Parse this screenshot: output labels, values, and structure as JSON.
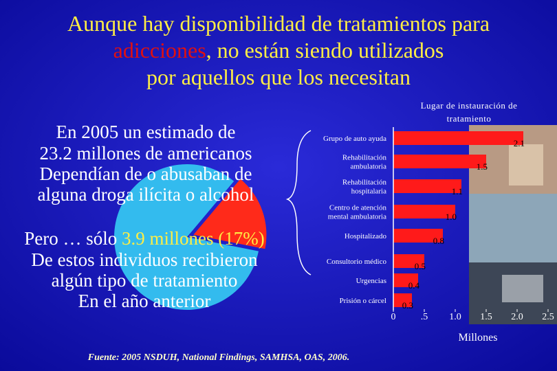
{
  "slide": {
    "title_lines": [
      [
        "Aunque hay disponibilidad de tratamientos para"
      ],
      [
        "adicciones",
        ", no están siendo utilizados"
      ],
      [
        "por aquellos que los necesitan"
      ]
    ],
    "intro_lines": [
      "En 2005 un estimado de",
      "23.2 millones de americanos",
      "Dependían de o abusaban de",
      "alguna droga ilícita o alcohol"
    ],
    "but_lines": [
      [
        "Pero … sólo ",
        "3.9 millones (17%)"
      ],
      [
        "De estos individuos recibieron"
      ],
      [
        "algún tipo de tratamiento"
      ],
      [
        "En el año anterior"
      ]
    ],
    "source": "Fuente: 2005 NSDUH, National Findings, SAMHSA, OAS, 2006."
  },
  "chart_data": [
    {
      "type": "pie",
      "values": [
        17,
        83
      ],
      "colors": [
        "#ff2a1a",
        "#33bbee"
      ]
    },
    {
      "type": "barh",
      "title_lines": [
        "Lugar de instauración de",
        "tratamiento"
      ],
      "categories": [
        [
          "Grupo de auto ayuda"
        ],
        [
          "Rehabilitación",
          "ambulatoria"
        ],
        [
          "Rehabilitación",
          "hospitalaria"
        ],
        [
          "Centro de atención",
          "mental ambulatoria"
        ],
        [
          "Hospitalizado"
        ],
        [
          "Consultorio médico"
        ],
        [
          "Urgencias"
        ],
        [
          "Prisión o cárcel"
        ]
      ],
      "values": [
        2.1,
        1.5,
        1.1,
        1.0,
        0.8,
        0.5,
        0.4,
        0.3
      ],
      "value_labels": [
        "2.1",
        "1.5",
        "1.1",
        "1.0",
        "0.8",
        "0.5",
        "0.4",
        "0.3"
      ],
      "color": "#ff1a1a",
      "xlim": [
        0,
        2.5
      ],
      "xticks": [
        0,
        {
          "value": 0.5,
          "label": ".5"
        },
        {
          "value": 1,
          "label": "1.0"
        },
        1.5,
        {
          "value": 2,
          "label": "2.0"
        },
        2.5
      ],
      "xlabel": "Millones"
    }
  ]
}
